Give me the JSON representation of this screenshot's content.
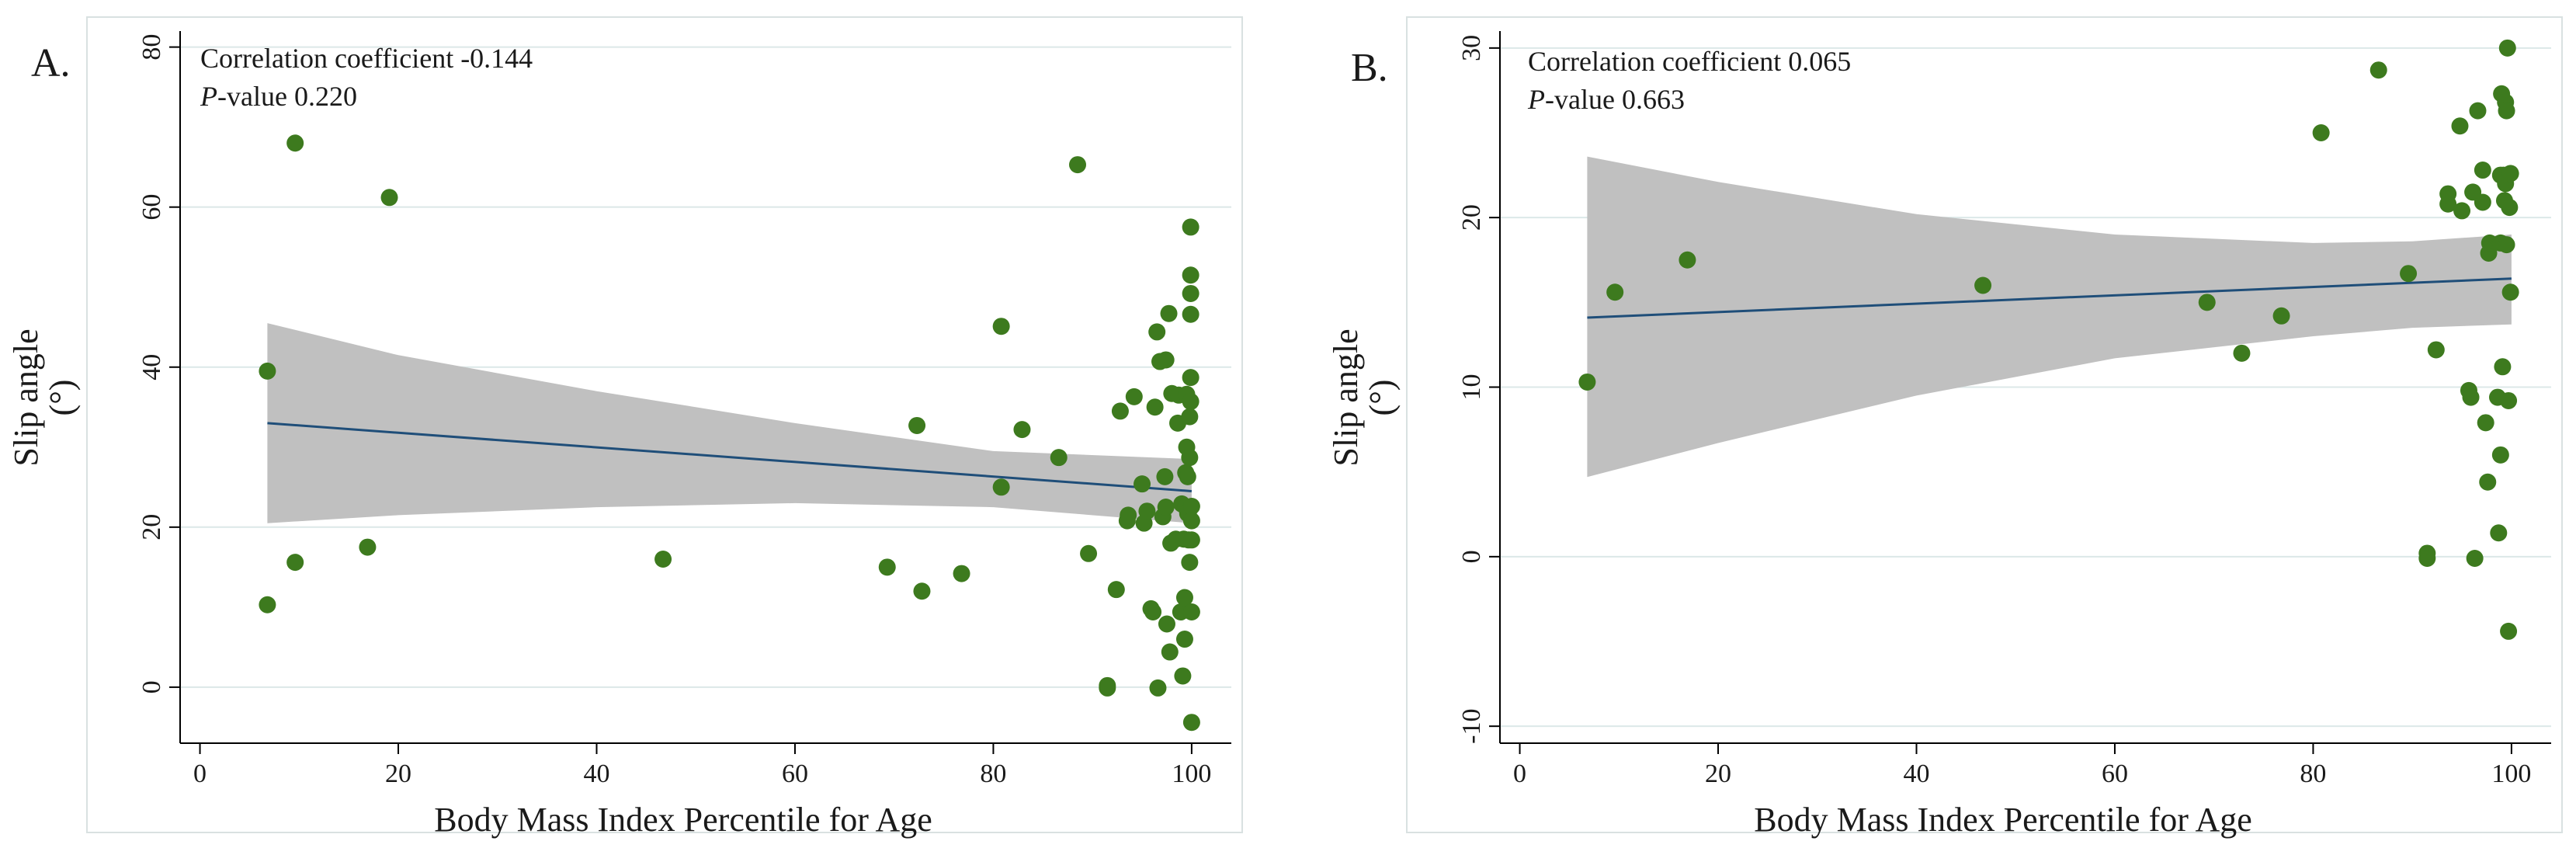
{
  "chart_data": [
    {
      "panel_label": "A.",
      "type": "scatter",
      "title": "",
      "xlabel": "Body Mass Index Percentile for Age",
      "ylabel_line1": "Slip angle",
      "ylabel_line2": "(°)",
      "xlim": [
        -2,
        104
      ],
      "ylim": [
        -7,
        82
      ],
      "xticks": [
        "0",
        "20",
        "40",
        "60",
        "80",
        "100"
      ],
      "yticks": [
        "0",
        "20",
        "40",
        "60",
        "80"
      ],
      "annotation_coef": "Correlation coefficient -0.144",
      "annotation_p_italic": "P",
      "annotation_p_rest": "-value 0.220",
      "fit_line": {
        "x": [
          6.8,
          100
        ],
        "y": [
          33.0,
          24.5
        ]
      },
      "ci_band": {
        "x": [
          6.8,
          20,
          40,
          60,
          80,
          100
        ],
        "lower": [
          20.5,
          21.5,
          22.5,
          23.0,
          22.5,
          20.5
        ],
        "upper": [
          45.5,
          41.5,
          37.0,
          33.0,
          29.5,
          28.5
        ]
      },
      "points": [
        [
          6.8,
          39.5
        ],
        [
          6.8,
          10.3
        ],
        [
          9.6,
          15.6
        ],
        [
          9.6,
          68.0
        ],
        [
          16.9,
          17.5
        ],
        [
          19.1,
          61.2
        ],
        [
          46.7,
          16.0
        ],
        [
          69.3,
          15.0
        ],
        [
          72.3,
          32.7
        ],
        [
          72.8,
          12.0
        ],
        [
          76.8,
          14.2
        ],
        [
          80.8,
          45.1
        ],
        [
          80.8,
          25.0
        ],
        [
          82.9,
          32.2
        ],
        [
          86.6,
          28.7
        ],
        [
          88.5,
          65.3
        ],
        [
          89.6,
          16.7
        ],
        [
          91.5,
          0.2
        ],
        [
          91.5,
          -0.1
        ],
        [
          92.4,
          12.2
        ],
        [
          92.8,
          34.5
        ],
        [
          93.5,
          20.8
        ],
        [
          93.6,
          21.5
        ],
        [
          94.2,
          36.3
        ],
        [
          95.0,
          25.4
        ],
        [
          95.2,
          20.5
        ],
        [
          95.5,
          22.0
        ],
        [
          95.9,
          9.8
        ],
        [
          96.1,
          9.4
        ],
        [
          96.3,
          35.0
        ],
        [
          96.5,
          44.4
        ],
        [
          96.6,
          -0.1
        ],
        [
          96.8,
          40.7
        ],
        [
          97.1,
          21.3
        ],
        [
          97.3,
          26.3
        ],
        [
          97.4,
          40.9
        ],
        [
          97.4,
          22.5
        ],
        [
          97.5,
          7.9
        ],
        [
          97.7,
          46.7
        ],
        [
          97.8,
          4.4
        ],
        [
          97.9,
          18.0
        ],
        [
          98.0,
          36.7
        ],
        [
          98.4,
          18.5
        ],
        [
          98.6,
          33.0
        ],
        [
          98.7,
          36.5
        ],
        [
          98.9,
          9.4
        ],
        [
          99.0,
          22.9
        ],
        [
          99.1,
          1.4
        ],
        [
          99.2,
          18.5
        ],
        [
          99.3,
          6.0
        ],
        [
          99.3,
          11.2
        ],
        [
          99.4,
          22.5
        ],
        [
          99.4,
          26.8
        ],
        [
          99.5,
          36.6
        ],
        [
          99.5,
          30.0
        ],
        [
          99.6,
          26.3
        ],
        [
          99.6,
          21.7
        ],
        [
          99.7,
          18.4
        ],
        [
          99.7,
          22.0
        ],
        [
          99.8,
          28.7
        ],
        [
          99.8,
          33.8
        ],
        [
          99.8,
          15.6
        ],
        [
          99.9,
          51.5
        ],
        [
          99.9,
          49.2
        ],
        [
          99.9,
          57.5
        ],
        [
          99.9,
          46.6
        ],
        [
          99.9,
          38.7
        ],
        [
          99.9,
          35.7
        ],
        [
          100.0,
          9.4
        ],
        [
          100.0,
          -4.4
        ],
        [
          100.0,
          18.4
        ],
        [
          100.0,
          22.6
        ],
        [
          100.0,
          20.8
        ]
      ]
    },
    {
      "panel_label": "B.",
      "type": "scatter",
      "title": "",
      "xlabel": "Body Mass Index Percentile for Age",
      "ylabel_line1": "Slip angle",
      "ylabel_line2": "(°)",
      "xlim": [
        -2,
        104
      ],
      "ylim": [
        -11,
        31
      ],
      "xticks": [
        "0",
        "20",
        "40",
        "60",
        "80",
        "100"
      ],
      "yticks": [
        "-10",
        "0",
        "10",
        "20",
        "30"
      ],
      "annotation_coef": "Correlation coefficient 0.065",
      "annotation_p_italic": "P",
      "annotation_p_rest": "-value 0.663",
      "fit_line": {
        "x": [
          6.8,
          100
        ],
        "y": [
          14.1,
          16.4
        ]
      },
      "ci_band": {
        "x": [
          6.8,
          20,
          40,
          60,
          80,
          90,
          100
        ],
        "lower": [
          4.7,
          6.7,
          9.5,
          11.7,
          13.0,
          13.5,
          13.7
        ],
        "upper": [
          23.6,
          22.1,
          20.2,
          19.0,
          18.5,
          18.6,
          19.0
        ]
      },
      "points": [
        [
          6.8,
          10.3
        ],
        [
          9.6,
          15.6
        ],
        [
          16.9,
          17.5
        ],
        [
          46.7,
          16.0
        ],
        [
          69.3,
          15.0
        ],
        [
          72.8,
          12.0
        ],
        [
          76.8,
          14.2
        ],
        [
          80.8,
          25.0
        ],
        [
          86.6,
          28.7
        ],
        [
          89.6,
          16.7
        ],
        [
          91.5,
          0.2
        ],
        [
          91.5,
          -0.1
        ],
        [
          92.4,
          12.2
        ],
        [
          93.6,
          21.4
        ],
        [
          93.6,
          20.8
        ],
        [
          94.8,
          25.4
        ],
        [
          95.0,
          20.4
        ],
        [
          95.7,
          9.8
        ],
        [
          95.9,
          9.4
        ],
        [
          96.1,
          21.5
        ],
        [
          96.3,
          -0.1
        ],
        [
          96.6,
          26.3
        ],
        [
          97.1,
          22.8
        ],
        [
          97.1,
          20.9
        ],
        [
          97.4,
          7.9
        ],
        [
          97.6,
          4.4
        ],
        [
          97.7,
          17.9
        ],
        [
          97.8,
          18.5
        ],
        [
          98.6,
          9.4
        ],
        [
          98.7,
          1.4
        ],
        [
          98.9,
          6.0
        ],
        [
          98.9,
          22.5
        ],
        [
          98.9,
          18.5
        ],
        [
          99.0,
          27.3
        ],
        [
          99.1,
          11.2
        ],
        [
          99.2,
          22.5
        ],
        [
          99.3,
          21.0
        ],
        [
          99.4,
          26.8
        ],
        [
          99.4,
          22.0
        ],
        [
          99.5,
          26.3
        ],
        [
          99.5,
          18.4
        ],
        [
          99.6,
          30.0
        ],
        [
          99.7,
          9.2
        ],
        [
          99.7,
          -4.4
        ],
        [
          99.8,
          20.6
        ],
        [
          99.9,
          22.6
        ],
        [
          99.9,
          15.6
        ]
      ]
    }
  ],
  "colors": {
    "point": "#3d7a1e",
    "fit_line": "#1f4e79",
    "ci_band": "#c0c0c0",
    "grid": "#dce8e8",
    "frame": "#d9e1e1",
    "axis": "#000000"
  }
}
